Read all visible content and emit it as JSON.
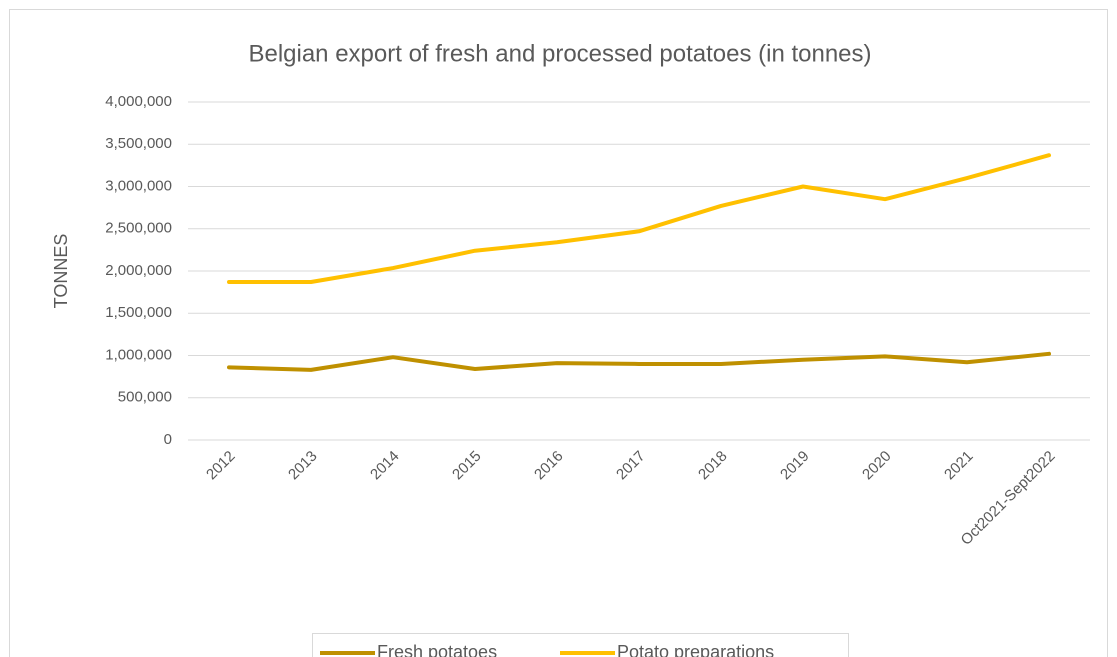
{
  "chart_data": {
    "type": "line",
    "title": "Belgian export of fresh and processed potatoes (in tonnes)",
    "y_label": "TONNES",
    "categories": [
      "2012",
      "2013",
      "2014",
      "2015",
      "2016",
      "2017",
      "2018",
      "2019",
      "2020",
      "2021",
      "Oct2021-Sept2022"
    ],
    "series": [
      {
        "name": "Fresh potatoes",
        "color": "#bf9000",
        "values": [
          860000,
          830000,
          980000,
          840000,
          910000,
          900000,
          900000,
          950000,
          990000,
          920000,
          1020000
        ]
      },
      {
        "name": "Potato preparations",
        "color": "#ffc000",
        "values": [
          1870000,
          1870000,
          2035000,
          2240000,
          2340000,
          2470000,
          2770000,
          3000000,
          2850000,
          3100000,
          3370000
        ]
      }
    ],
    "ylim": [
      0,
      4000000
    ],
    "yticks": [
      0,
      {
        "value": 500000,
        "label": "500,000"
      },
      {
        "value": 1000000,
        "label": "1,000,000"
      },
      {
        "value": 1500000,
        "label": "1,500,000"
      },
      {
        "value": 2000000,
        "label": "2,000,000"
      },
      {
        "value": 2500000,
        "label": "2,500,000"
      },
      {
        "value": 3000000,
        "label": "3,000,000"
      },
      {
        "value": 3500000,
        "label": "3,500,000"
      },
      {
        "value": 4000000,
        "label": "4,000,000"
      }
    ],
    "grid": true,
    "legend": "bottom"
  }
}
